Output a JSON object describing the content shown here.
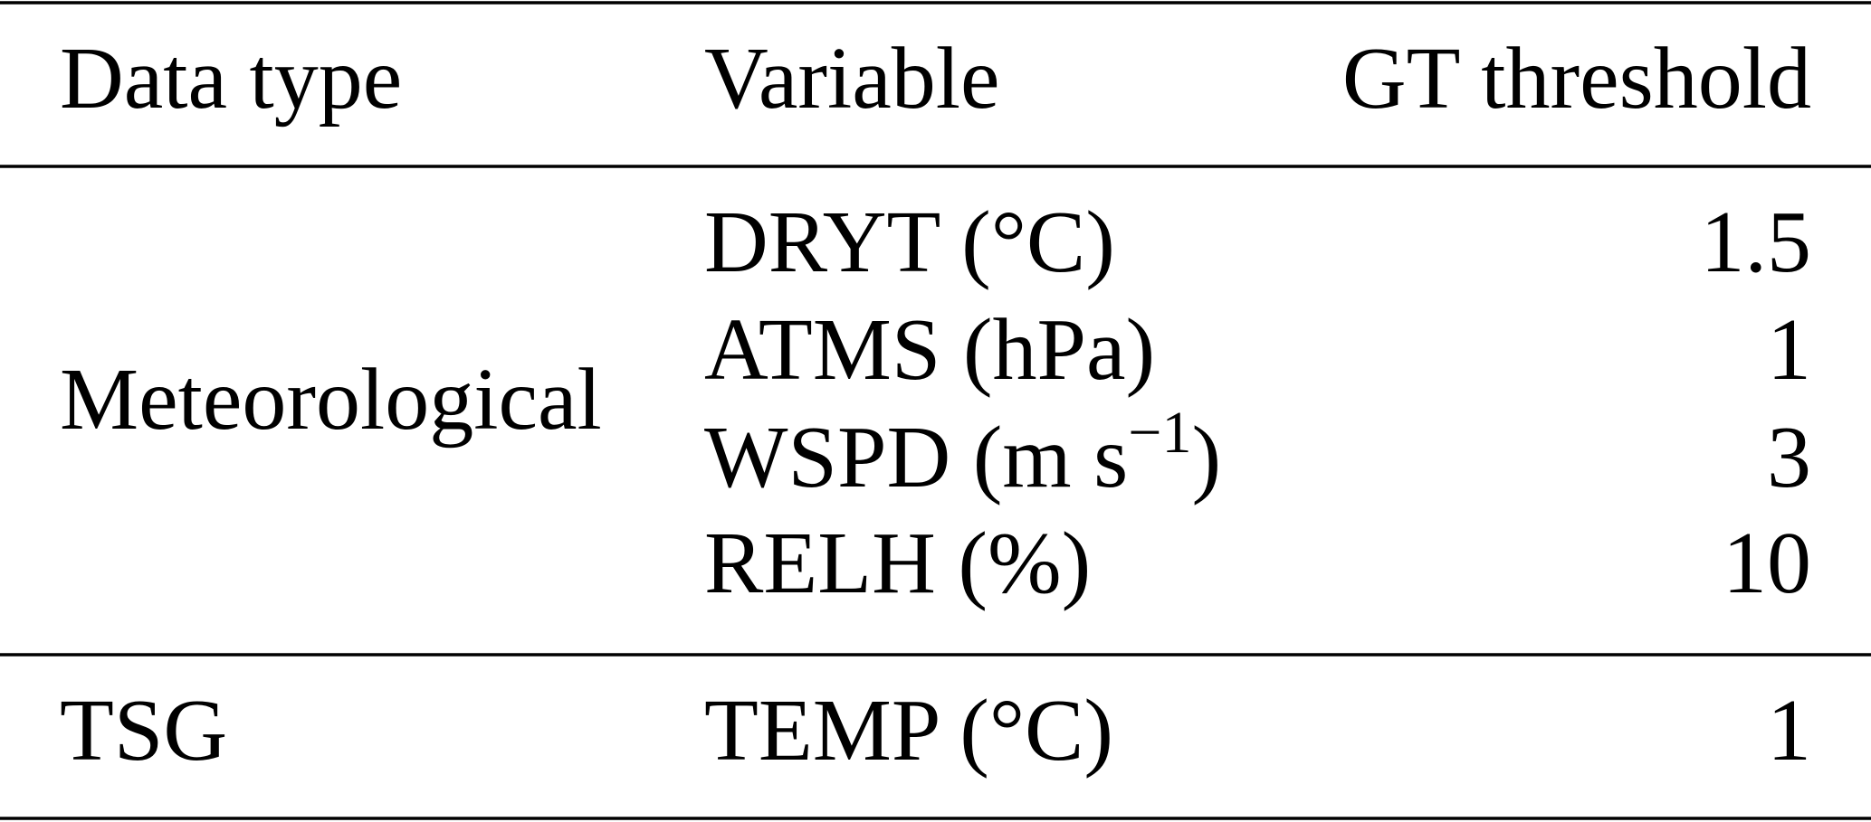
{
  "table": {
    "header": [
      "Data type",
      "Variable",
      "GT threshold"
    ],
    "groups": [
      {
        "data_type": "Meteorological",
        "rows": [
          {
            "variable": "DRYT (°C)",
            "threshold": 1.5
          },
          {
            "variable": "ATMS (hPa)",
            "threshold": 1
          },
          {
            "variable": "WSPD (m s",
            "variable_sup": "−1",
            "variable_end": ")",
            "threshold": 3
          },
          {
            "variable": "RELH (%)",
            "threshold": 10
          }
        ]
      },
      {
        "data_type": "TSG",
        "rows": [
          {
            "variable": "TEMP (°C)",
            "threshold": 1
          }
        ]
      }
    ]
  }
}
